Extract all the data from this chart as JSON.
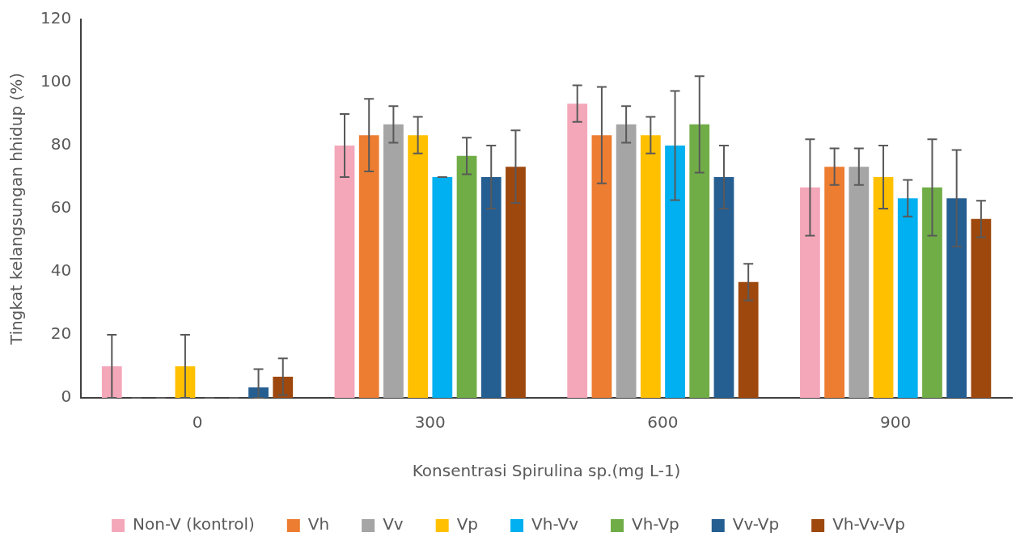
{
  "chart_data": {
    "type": "bar",
    "xlabel": "Konsentrasi Spirulina sp.(mg L-1)",
    "ylabel": "Tingkat kelangsungan hhidup (%)",
    "categories": [
      "0",
      "300",
      "600",
      "900"
    ],
    "ylim": [
      0,
      120
    ],
    "yticks": [
      0,
      20,
      40,
      60,
      80,
      100,
      120
    ],
    "grid": false,
    "legend": "bottom",
    "series": [
      {
        "name": "Non-V (kontrol)",
        "color": "#f4a7b9",
        "values": [
          10,
          80,
          93.3,
          66.7
        ],
        "errors": [
          10,
          10,
          5.8,
          15.3
        ]
      },
      {
        "name": "Vh",
        "color": "#ed7d31",
        "values": [
          0,
          83.3,
          83.3,
          73.3
        ],
        "errors": [
          0,
          11.5,
          15.3,
          5.8
        ]
      },
      {
        "name": "Vv",
        "color": "#a5a5a5",
        "values": [
          0,
          86.7,
          86.7,
          73.3
        ],
        "errors": [
          0,
          5.8,
          5.8,
          5.8
        ]
      },
      {
        "name": "Vp",
        "color": "#ffc000",
        "values": [
          10,
          83.3,
          83.3,
          70
        ],
        "errors": [
          10,
          5.8,
          5.8,
          10
        ]
      },
      {
        "name": "Vh-Vv",
        "color": "#00b0f0",
        "values": [
          0,
          70,
          80,
          63.3
        ],
        "errors": [
          0,
          0,
          17.3,
          5.8
        ]
      },
      {
        "name": "Vh-Vp",
        "color": "#70ad47",
        "values": [
          0,
          76.7,
          86.7,
          66.7
        ],
        "errors": [
          0,
          5.8,
          15.3,
          15.3
        ]
      },
      {
        "name": "Vv-Vp",
        "color": "#255e91",
        "values": [
          3.3,
          70,
          70,
          63.3
        ],
        "errors": [
          [
            0,
            9.1
          ],
          10,
          10,
          15.3
        ]
      },
      {
        "name": "Vh-Vv-Vp",
        "color": "#9e480e",
        "values": [
          6.7,
          73.3,
          36.7,
          56.7
        ],
        "errors": [
          5.8,
          11.5,
          5.8,
          5.8
        ]
      }
    ]
  }
}
